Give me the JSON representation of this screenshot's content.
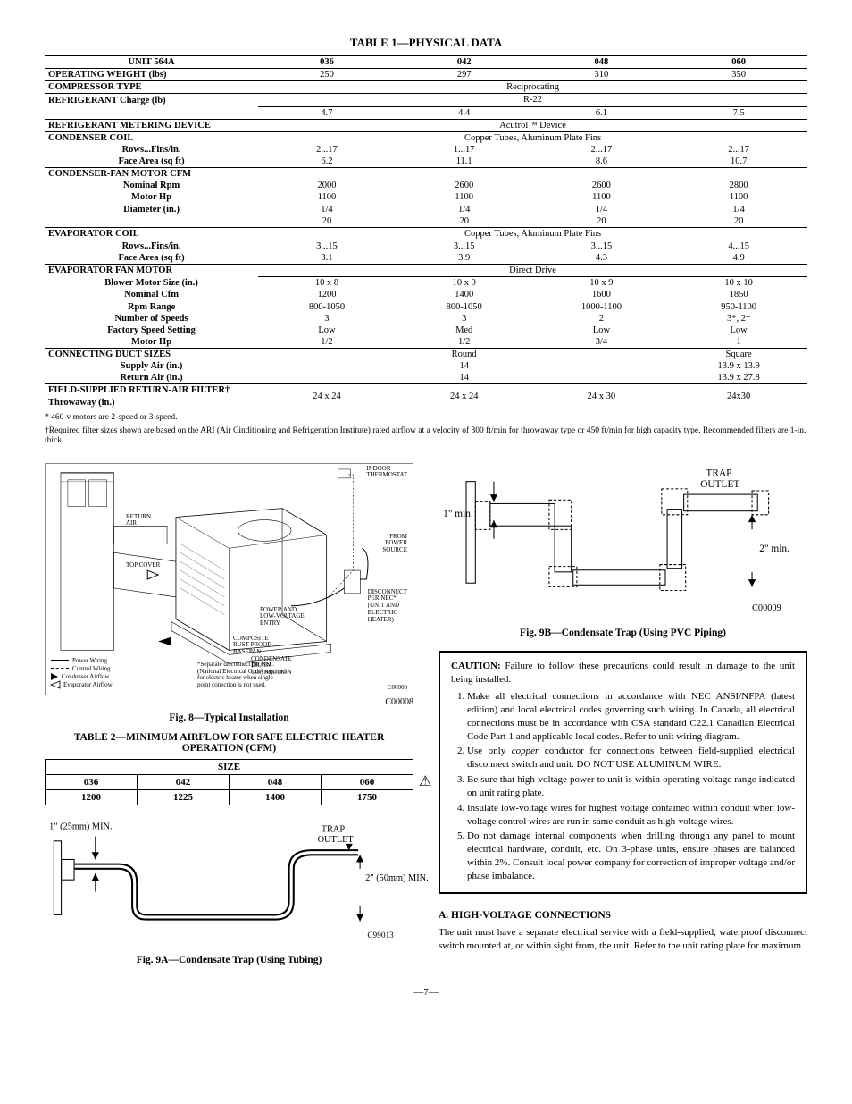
{
  "table1": {
    "title": "TABLE 1—PHYSICAL DATA",
    "header": {
      "unit": "UNIT 564A",
      "cols": [
        "036",
        "042",
        "048",
        "060"
      ]
    },
    "rows": [
      {
        "type": "vals",
        "label": "OPERATING WEIGHT (lbs)",
        "vals": [
          "250",
          "297",
          "310",
          "350"
        ],
        "top": true
      },
      {
        "type": "merged",
        "label": "COMPRESSOR TYPE",
        "merged": "Reciprocating",
        "top": true
      },
      {
        "type": "merged",
        "label": "REFRIGERANT Charge (lb)",
        "merged": "R-22",
        "top": true,
        "rowspan_label": true
      },
      {
        "type": "vals",
        "label": "",
        "vals": [
          "4.7",
          "4.4",
          "6.1",
          "7.5"
        ],
        "top_data": true
      },
      {
        "type": "merged",
        "label": "REFRIGERANT METERING DEVICE",
        "merged": "Acutrol™ Device",
        "top": true
      },
      {
        "type": "merged",
        "label": "CONDENSER COIL",
        "merged": "Copper Tubes, Aluminum Plate Fins",
        "top": true
      },
      {
        "type": "vals",
        "label_sub": "Rows...Fins/in.",
        "vals": [
          "2...17",
          "1...17",
          "2...17",
          "2...17"
        ]
      },
      {
        "type": "vals",
        "label_sub": "Face Area (sq ft)",
        "vals": [
          "6.2",
          "11.1",
          "8.6",
          "10.7"
        ]
      },
      {
        "type": "blank",
        "label": "CONDENSER-FAN MOTOR CFM",
        "top": true
      },
      {
        "type": "vals",
        "label_sub": "Nominal Rpm",
        "vals": [
          "2000",
          "2600",
          "2600",
          "2800"
        ]
      },
      {
        "type": "vals",
        "label_sub": "Motor Hp",
        "vals": [
          "1100",
          "1100",
          "1100",
          "1100"
        ]
      },
      {
        "type": "vals",
        "label_sub": "Diameter (in.)",
        "vals": [
          "1/4",
          "1/4",
          "1/4",
          "1/4"
        ]
      },
      {
        "type": "vals",
        "label_sub": "",
        "vals": [
          "20",
          "20",
          "20",
          "20"
        ]
      },
      {
        "type": "merged",
        "label": "EVAPORATOR COIL",
        "merged": "Copper Tubes, Aluminum Plate Fins",
        "top": true
      },
      {
        "type": "vals",
        "label_sub": "Rows...Fins/in.",
        "vals": [
          "3...15",
          "3...15",
          "3...15",
          "4...15"
        ],
        "top_data": true
      },
      {
        "type": "vals",
        "label_sub": "Face Area (sq ft)",
        "vals": [
          "3.1",
          "3.9",
          "4.3",
          "4.9"
        ]
      },
      {
        "type": "merged",
        "label": "EVAPORATOR FAN MOTOR",
        "merged": "Direct Drive",
        "top": true
      },
      {
        "type": "vals",
        "label_sub": "Blower Motor Size (in.)",
        "vals": [
          "10 x 8",
          "10 x 9",
          "10 x 9",
          "10 x 10"
        ],
        "top_data": true
      },
      {
        "type": "vals",
        "label_sub": "Nominal Cfm",
        "vals": [
          "1200",
          "1400",
          "1600",
          "1850"
        ]
      },
      {
        "type": "vals",
        "label_sub": "Rpm Range",
        "vals": [
          "800-1050",
          "800-1050",
          "1000-1100",
          "950-1100"
        ]
      },
      {
        "type": "vals",
        "label_sub": "Number of Speeds",
        "vals": [
          "3",
          "3",
          "2",
          "3*, 2*"
        ]
      },
      {
        "type": "vals",
        "label_sub": "Factory Speed Setting",
        "vals": [
          "Low",
          "Med",
          "Low",
          "Low"
        ]
      },
      {
        "type": "vals",
        "label_sub": "Motor Hp",
        "vals": [
          "1/2",
          "1/2",
          "3/4",
          "1"
        ]
      },
      {
        "type": "split",
        "label": "CONNECTING DUCT SIZES",
        "left3": "Round",
        "right1": "Square",
        "top": true
      },
      {
        "type": "split",
        "label_sub": "Supply Air (in.)",
        "left3": "14",
        "right1": "13.9 x 13.9"
      },
      {
        "type": "split",
        "label_sub": "Return Air (in.)",
        "left3": "14",
        "right1": "13.9 x 27.8"
      },
      {
        "type": "vals",
        "label": "FIELD-SUPPLIED RETURN-AIR FILTER†",
        "label_sub2": "Throwaway (in.)",
        "vals": [
          "24 x 24",
          "24 x 24",
          "24 x 30",
          "24x30"
        ],
        "top": true,
        "bottom": true
      }
    ],
    "note1": "* 460-v motors are 2-speed or 3-speed.",
    "note2": "†Required filter sizes shown are based on the ARI (Air Cinditioning and Refrigeration Institute) rated airflow at a velocity of 300 ft/min for throwaway type or 450 ft/min for high capacity type. Recommended filters are 1-in. thick."
  },
  "fig8": {
    "caption": "Fig. 8—Typical Installation",
    "code": "C00008",
    "labels": {
      "indoor_thermostat": "INDOOR\nTHERMOSTAT",
      "return_air": "RETURN\nAIR",
      "top_cover": "TOP COVER",
      "from_power": "FROM\nPOWER\nSOURCE",
      "power_lv": "POWER AND\nLOW-VOLTAGE\nENTRY",
      "disconnect": "DISCONNECT\nPER NEC*\n(UNIT AND\nELECTRIC\nHEATER)",
      "composite": "COMPOSITE\nRUST-PROOF\nBASEPAN",
      "drain": "CONDENSATE\nDRAIN\nCONNECTION",
      "legend_power": "Power Wiring",
      "legend_control": "Control Wiring",
      "legend_cond": "Condenser Airflow",
      "legend_evap": "Evaporator Airflow",
      "sep_note": "*Separate disconnect per NEC\n(National Electrical Code) required\nfor electric heater when single-\npoint conection is not used."
    }
  },
  "table2": {
    "title": "TABLE 2—MINIMUM AIRFLOW FOR SAFE ELECTRIC HEATER OPERATION (CFM)",
    "size": "SIZE",
    "cols": [
      "036",
      "042",
      "048",
      "060"
    ],
    "vals": [
      "1200",
      "1225",
      "1400",
      "1750"
    ]
  },
  "fig9a": {
    "caption": "Fig. 9A—Condensate Trap (Using Tubing)",
    "min1": "1\" (25mm) MIN.",
    "trap": "TRAP\nOUTLET",
    "min2": "2\" (50mm) MIN.",
    "code": "C99013"
  },
  "fig9b": {
    "caption": "Fig. 9B—Condensate Trap (Using PVC Piping)",
    "min1": "1\" min.",
    "trap": "TRAP\nOUTLET",
    "min2": "2\" min.",
    "code": "C00009"
  },
  "caution": {
    "head": "CAUTION:",
    "intro": " Failure to follow these precautions could result in damage to the unit being installed:",
    "items": [
      "Make all electrical connections in accordance with NEC ANSI/NFPA (latest edition) and local electrical codes governing such wiring. In Canada, all electrical connections must be in accordance with CSA standard C22.1 Canadian Electrical Code Part 1 and applicable local codes. Refer to unit wiring diagram.",
      "Use only <i>copper</i> conductor for connections between field-supplied electrical disconnect switch and unit. DO NOT USE ALUMINUM WIRE.",
      "Be sure that high-voltage power to unit is within operating voltage range indicated on unit rating plate.",
      "Insulate low-voltage wires for highest voltage contained within conduit when low-voltage control wires are run in same conduit as high-voltage wires.",
      "Do not damage internal components when drilling through any panel to mount electrical hardware, conduit, etc. On 3-phase units, ensure phases are balanced within 2%. Consult local power company for correction of improper voltage and/or phase imbalance."
    ]
  },
  "sectionA": {
    "head": "A.   HIGH-VOLTAGE CONNECTIONS",
    "body": "The unit must have a separate electrical service with a field-supplied, waterproof disconnect switch mounted at, or within sight from, the unit. Refer to the unit rating plate for maximum"
  },
  "page": "—7—"
}
